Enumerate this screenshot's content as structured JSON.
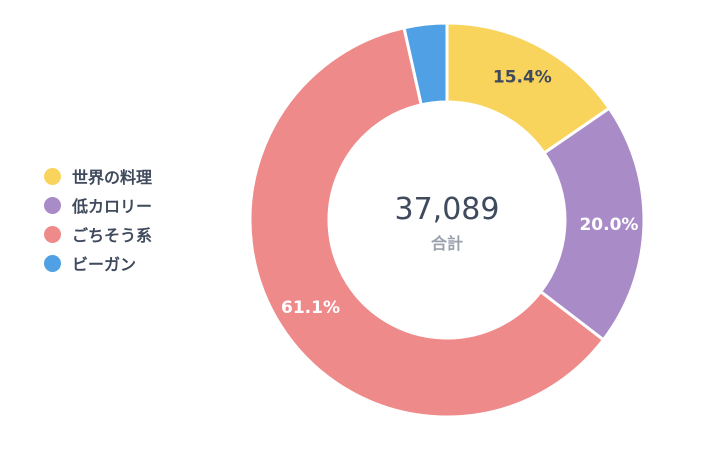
{
  "chart_data": {
    "type": "pie",
    "variant": "donut",
    "categories": [
      "世界の料理",
      "低カロリー",
      "ごちそう系",
      "ビーガン"
    ],
    "values": [
      15.4,
      20.0,
      61.1,
      3.5
    ],
    "value_labels": [
      "15.4%",
      "20.0%",
      "61.1%",
      ""
    ],
    "colors": [
      "#f9d45c",
      "#a98bc7",
      "#ef8a8a",
      "#4fa0e4"
    ],
    "label_colors": [
      "#3f4a5c",
      "#ffffff",
      "#ffffff",
      "#ffffff"
    ],
    "center_value": "37,089",
    "center_label": "合計",
    "legend_position": "left",
    "start_angle_deg": 0,
    "direction": "clockwise"
  }
}
